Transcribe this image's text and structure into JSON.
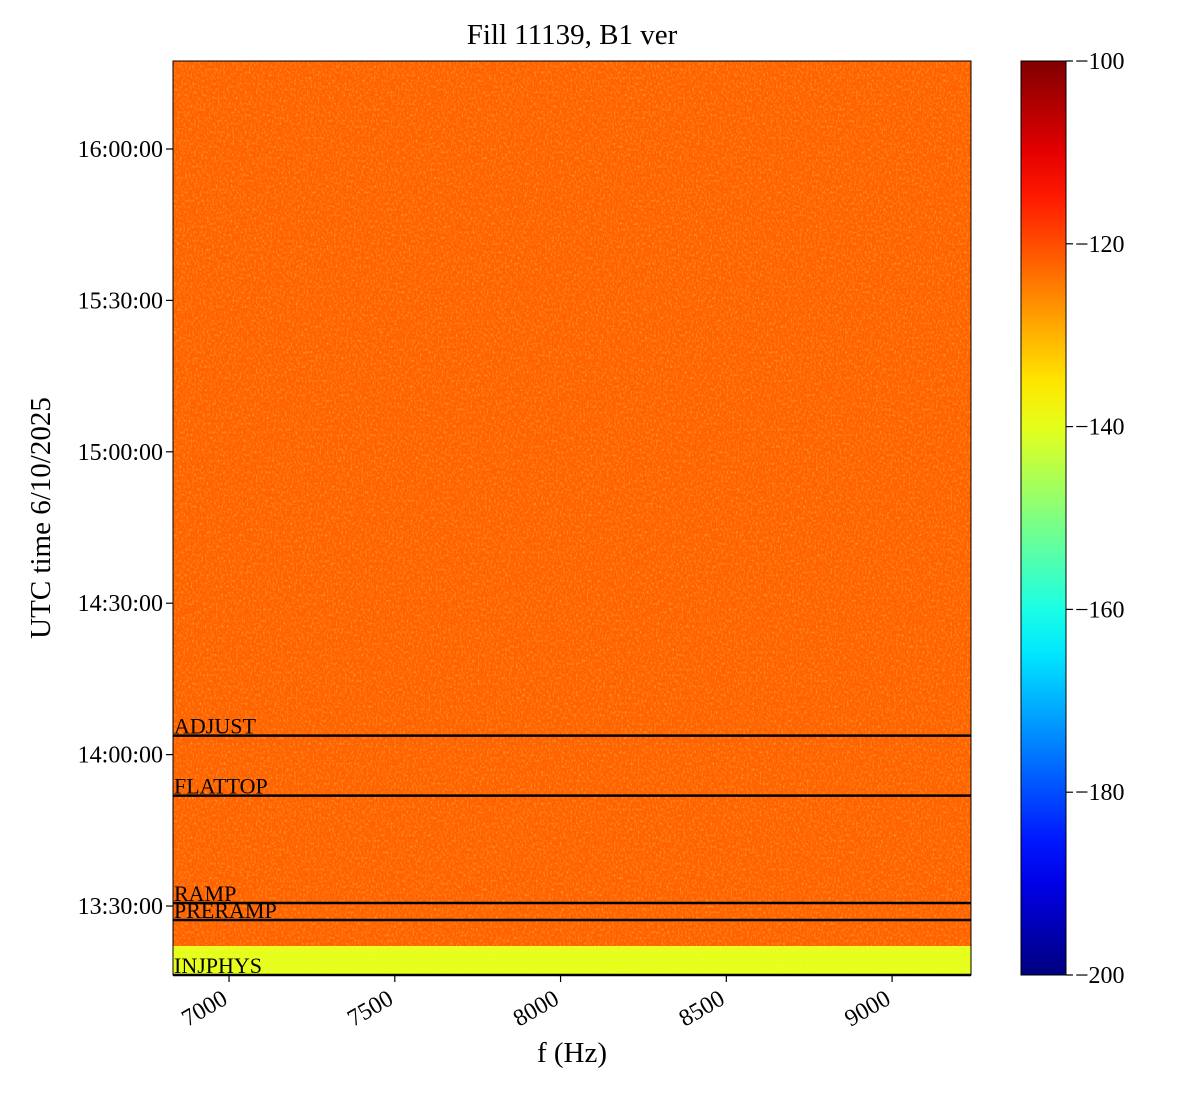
{
  "chart_data": {
    "type": "spectrogram",
    "title": "Fill 11139, B1 ver",
    "x_label": "f (Hz)",
    "y_label": "UTC time 6/10/2025",
    "xlim": [
      6831,
      9238
    ],
    "xticks": [
      7000,
      7500,
      8000,
      8500,
      9000
    ],
    "ylim": [
      "13:16:20",
      "16:17:26"
    ],
    "yticks": [
      "13:30:00",
      "14:00:00",
      "14:30:00",
      "15:00:00",
      "15:30:00",
      "16:00:00"
    ],
    "colormap": "jet",
    "clim": [
      -200,
      -100
    ],
    "cticks": [
      {
        "value": -200,
        "label": "−200"
      },
      {
        "value": -180,
        "label": "−180"
      },
      {
        "value": -160,
        "label": "−160"
      },
      {
        "value": -140,
        "label": "−140"
      },
      {
        "value": -120,
        "label": "−120"
      },
      {
        "value": -100,
        "label": "−100"
      }
    ],
    "regions": [
      {
        "t0": "13:22:04",
        "t1": "16:17:26",
        "level": -122
      },
      {
        "t0": "13:16:20",
        "t1": "13:22:04",
        "level": -140
      }
    ],
    "events": [
      {
        "label": "ADJUST",
        "time": "14:03:46"
      },
      {
        "label": "FLATTOP",
        "time": "13:51:52"
      },
      {
        "label": "RAMP",
        "time": "13:30:36"
      },
      {
        "label": "PRERAMP",
        "time": "13:27:14"
      },
      {
        "label": "INJPHYS",
        "time": "13:16:20"
      }
    ]
  }
}
